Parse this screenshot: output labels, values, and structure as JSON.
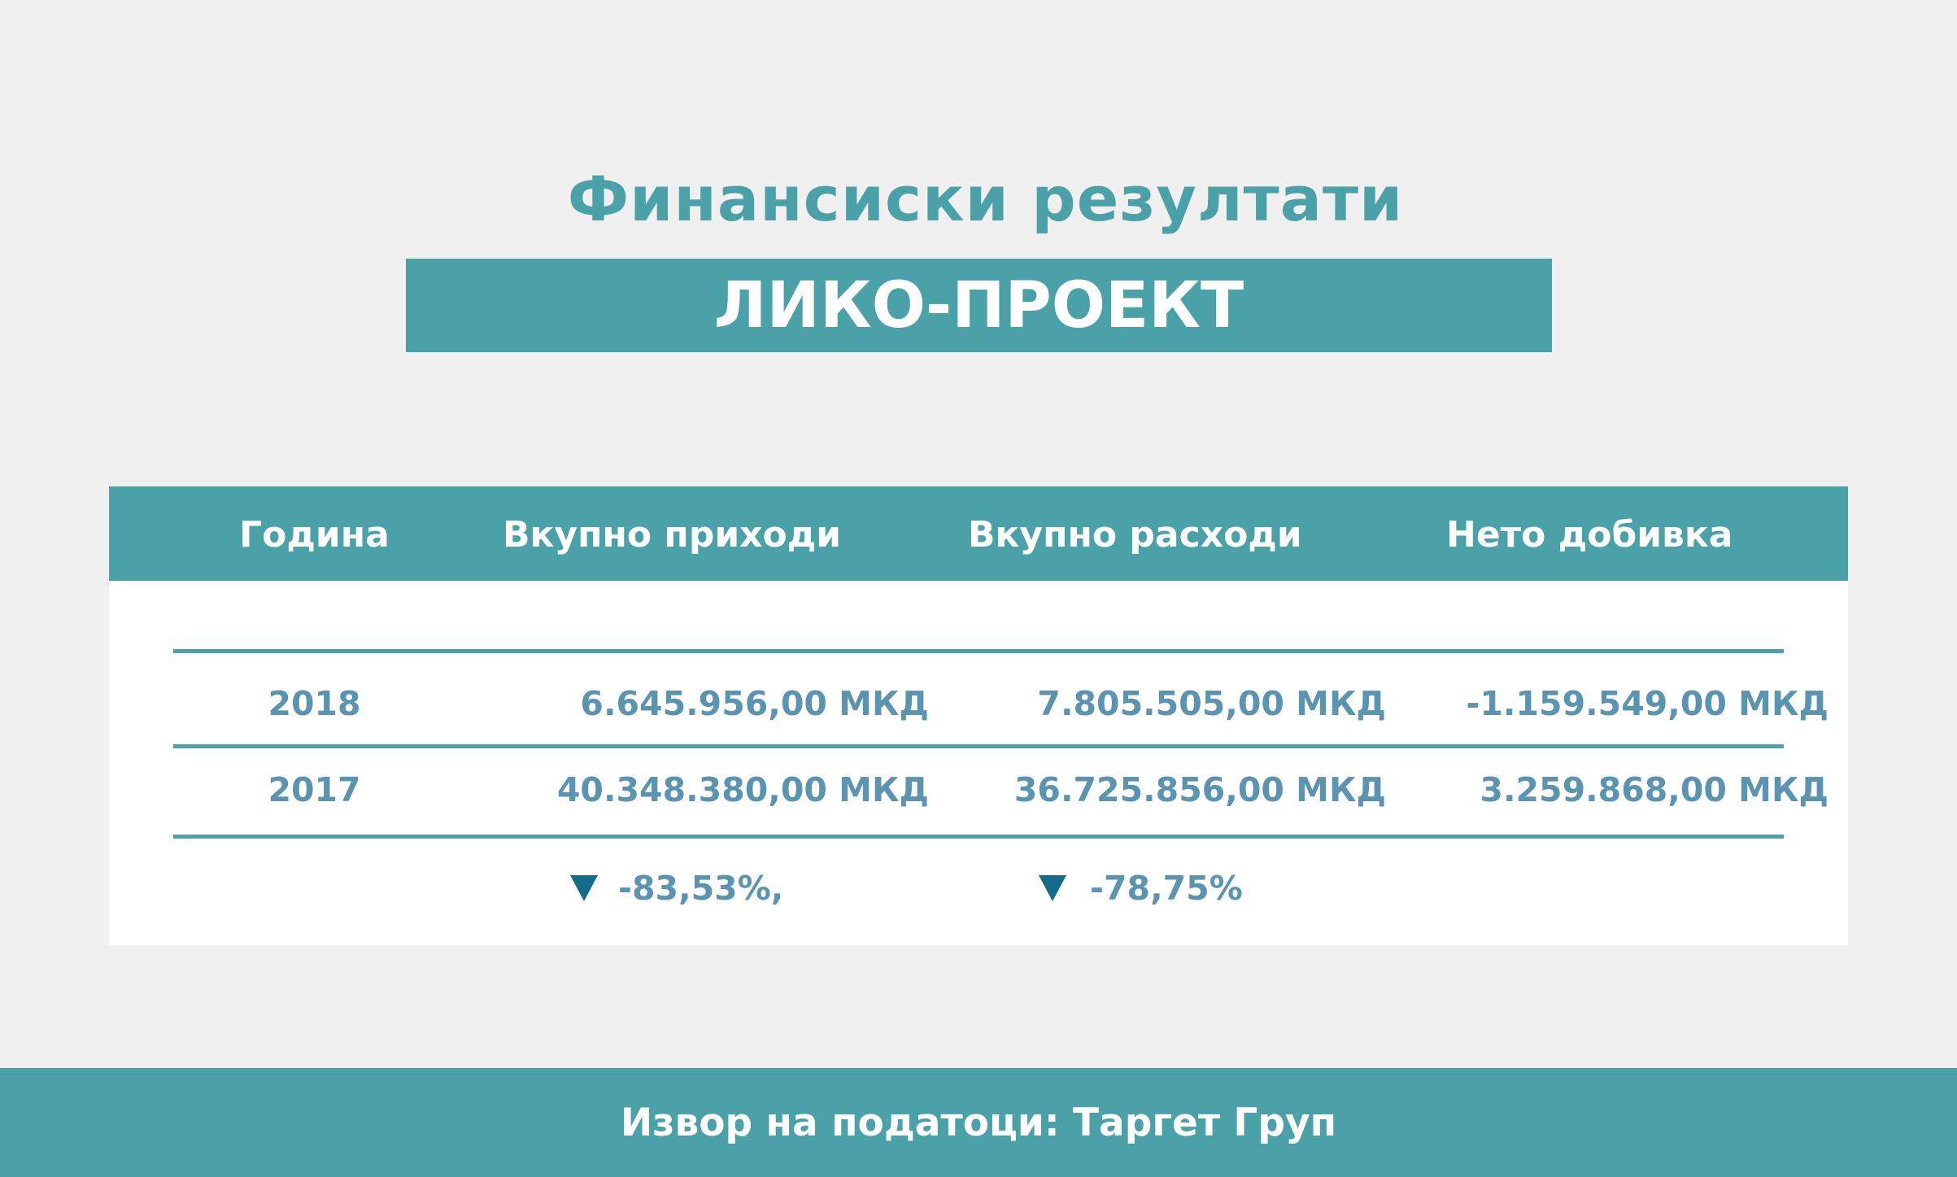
{
  "title": "Финансиски резултати",
  "company": "ЛИКО-ПРОЕКТ",
  "table": {
    "headers": [
      "Година",
      "Вкупно приходи",
      "Вкупно расходи",
      "Нето добивка"
    ],
    "rows": [
      {
        "year": "2018",
        "income": "6.645.956,00 МКД",
        "expenses": "7.805.505,00 МКД",
        "net": "-1.159.549,00 МКД"
      },
      {
        "year": "2017",
        "income": "40.348.380,00 МКД",
        "expenses": "36.725.856,00 МКД",
        "net": "3.259.868,00 МКД"
      }
    ],
    "changes": {
      "income": "-83,53%,",
      "expenses": "-78,75%"
    }
  },
  "icons": {
    "change_arrow": "triangle-down-icon"
  },
  "colors": {
    "accent": "#4aa2a8",
    "value_text": "#5a94b0",
    "arrow": "#156b8a",
    "background": "#f0f0f0"
  },
  "footer": "Извор на податоци: Таргет Груп"
}
